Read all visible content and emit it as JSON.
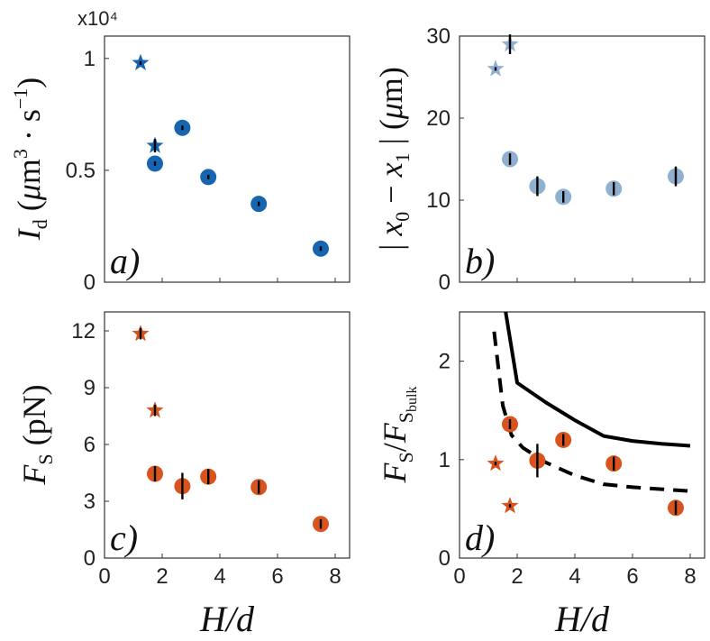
{
  "chart_data": [
    {
      "panel": "a",
      "type": "scatter",
      "panel_label": "a)",
      "ylabel": "I_d (μm^3 · s^-1)",
      "multiplier_label": "x10⁴",
      "xlim": [
        0,
        8.5
      ],
      "ylim": [
        0,
        1.1
      ],
      "yticks": [
        0,
        0.5,
        1
      ],
      "ytick_labels": [
        "0",
        "0.5",
        "1"
      ],
      "series": [
        {
          "marker": "star",
          "color": "#1565b0",
          "points": [
            {
              "x": 1.25,
              "y": 0.98,
              "err": 0.0
            },
            {
              "x": 1.75,
              "y": 0.61,
              "err": 0.03
            }
          ]
        },
        {
          "marker": "circle",
          "color": "#1565b0",
          "points": [
            {
              "x": 1.75,
              "y": 0.53,
              "err": 0.01
            },
            {
              "x": 2.7,
              "y": 0.69,
              "err": 0.01
            },
            {
              "x": 3.6,
              "y": 0.47,
              "err": 0.01
            },
            {
              "x": 5.35,
              "y": 0.35,
              "err": 0.01
            },
            {
              "x": 7.5,
              "y": 0.15,
              "err": 0.01
            }
          ]
        }
      ]
    },
    {
      "panel": "b",
      "type": "scatter",
      "panel_label": "b)",
      "ylabel": "|x_0 − x_1| (μm)",
      "xlim": [
        0,
        8.5
      ],
      "ylim": [
        0,
        30
      ],
      "yticks": [
        0,
        10,
        20,
        30
      ],
      "ytick_labels": [
        "0",
        "10",
        "20",
        "30"
      ],
      "series": [
        {
          "marker": "star",
          "color": "#8fb0cf",
          "points": [
            {
              "x": 1.25,
              "y": 26.0,
              "err": 0.0
            },
            {
              "x": 1.75,
              "y": 29.0,
              "err": 1.2
            }
          ]
        },
        {
          "marker": "circle",
          "color": "#8fb0cf",
          "points": [
            {
              "x": 1.75,
              "y": 15.0,
              "err": 0.7
            },
            {
              "x": 2.7,
              "y": 11.7,
              "err": 1.2
            },
            {
              "x": 3.6,
              "y": 10.4,
              "err": 0.7
            },
            {
              "x": 5.35,
              "y": 11.4,
              "err": 0.8
            },
            {
              "x": 7.5,
              "y": 12.9,
              "err": 1.2
            }
          ]
        }
      ]
    },
    {
      "panel": "c",
      "type": "scatter",
      "panel_label": "c)",
      "ylabel": "F_S (pN)",
      "xlabel": "H/d",
      "xlim": [
        0,
        8.5
      ],
      "xticks": [
        0,
        2,
        4,
        6,
        8
      ],
      "xtick_labels": [
        "0",
        "2",
        "4",
        "6",
        "8"
      ],
      "ylim": [
        0,
        13
      ],
      "yticks": [
        0,
        3,
        6,
        9,
        12
      ],
      "ytick_labels": [
        "0",
        "3",
        "6",
        "9",
        "12"
      ],
      "series": [
        {
          "marker": "star",
          "color": "#d9531e",
          "points": [
            {
              "x": 1.25,
              "y": 11.85,
              "err": 0.3
            },
            {
              "x": 1.75,
              "y": 7.8,
              "err": 0.3
            }
          ]
        },
        {
          "marker": "circle",
          "color": "#d9531e",
          "points": [
            {
              "x": 1.75,
              "y": 4.45,
              "err": 0.4
            },
            {
              "x": 2.7,
              "y": 3.8,
              "err": 0.7
            },
            {
              "x": 3.6,
              "y": 4.3,
              "err": 0.4
            },
            {
              "x": 5.35,
              "y": 3.75,
              "err": 0.35
            },
            {
              "x": 7.5,
              "y": 1.8,
              "err": 0.25
            }
          ]
        }
      ]
    },
    {
      "panel": "d",
      "type": "scatter",
      "panel_label": "d)",
      "ylabel": "F_S / F_S_bulk",
      "xlabel": "H/d",
      "xlim": [
        0,
        8.5
      ],
      "xticks": [
        0,
        2,
        4,
        6,
        8
      ],
      "xtick_labels": [
        "0",
        "2",
        "4",
        "6",
        "8"
      ],
      "ylim": [
        0,
        2.5
      ],
      "yticks": [
        0,
        1,
        2
      ],
      "ytick_labels": [
        "0",
        "1",
        "2"
      ],
      "series": [
        {
          "marker": "star",
          "color": "#d9531e",
          "points": [
            {
              "x": 1.25,
              "y": 0.96,
              "err": 0.0
            },
            {
              "x": 1.75,
              "y": 0.53,
              "err": 0.0
            }
          ]
        },
        {
          "marker": "circle",
          "color": "#d9531e",
          "points": [
            {
              "x": 1.75,
              "y": 1.36,
              "err": 0.05
            },
            {
              "x": 2.7,
              "y": 0.99,
              "err": 0.17
            },
            {
              "x": 3.6,
              "y": 1.2,
              "err": 0.06
            },
            {
              "x": 5.35,
              "y": 0.96,
              "err": 0.07
            },
            {
              "x": 7.5,
              "y": 0.51,
              "err": 0.07
            }
          ]
        }
      ],
      "lines": [
        {
          "style": "solid",
          "color": "#000000",
          "points": [
            {
              "x": 1.6,
              "y": 2.5
            },
            {
              "x": 2.0,
              "y": 1.78
            },
            {
              "x": 3.0,
              "y": 1.58
            },
            {
              "x": 4.0,
              "y": 1.4
            },
            {
              "x": 5.0,
              "y": 1.24
            },
            {
              "x": 6.0,
              "y": 1.19
            },
            {
              "x": 7.0,
              "y": 1.16
            },
            {
              "x": 8.0,
              "y": 1.14
            }
          ]
        },
        {
          "style": "dashed",
          "color": "#000000",
          "points": [
            {
              "x": 1.2,
              "y": 2.3
            },
            {
              "x": 1.5,
              "y": 1.55
            },
            {
              "x": 1.8,
              "y": 1.25
            },
            {
              "x": 2.2,
              "y": 1.12
            },
            {
              "x": 3.0,
              "y": 0.97
            },
            {
              "x": 4.0,
              "y": 0.84
            },
            {
              "x": 5.0,
              "y": 0.75
            },
            {
              "x": 6.0,
              "y": 0.72
            },
            {
              "x": 7.0,
              "y": 0.7
            },
            {
              "x": 8.0,
              "y": 0.68
            }
          ]
        }
      ]
    }
  ]
}
